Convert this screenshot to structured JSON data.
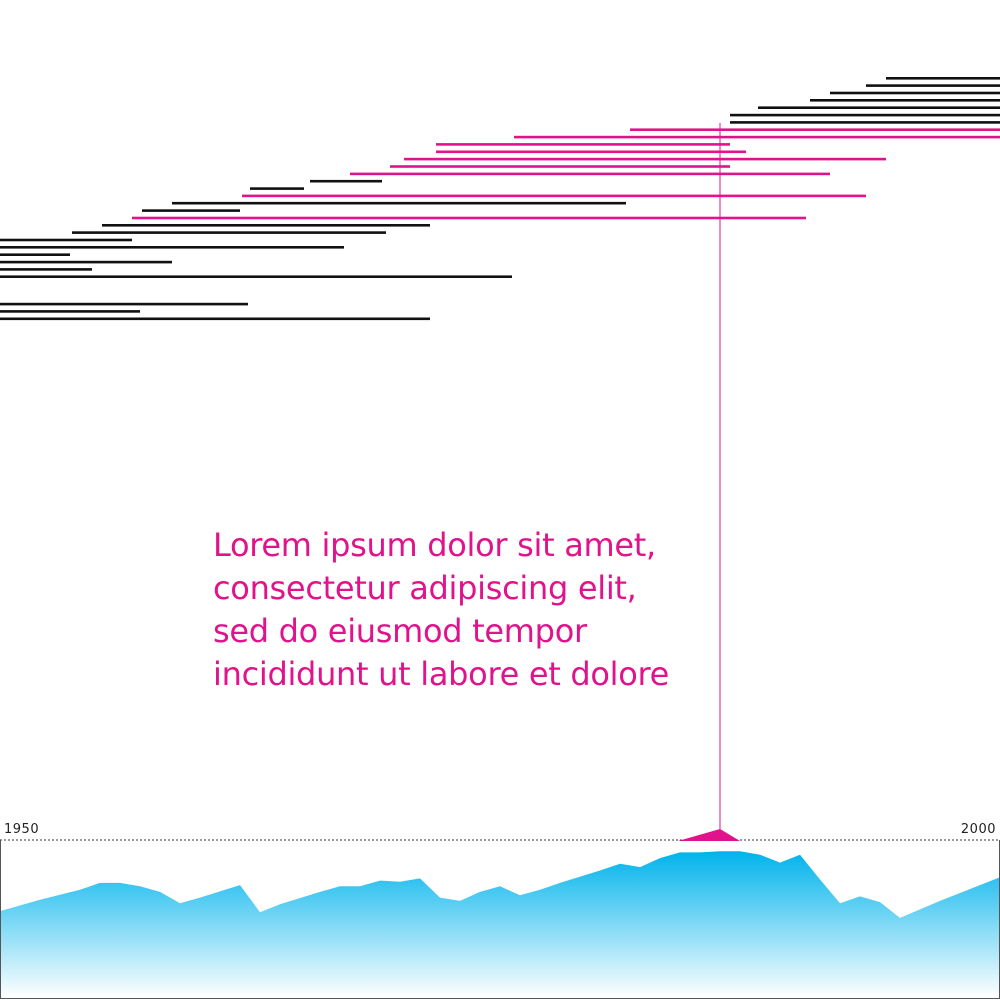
{
  "caption": {
    "lines": [
      "Lorem ipsum dolor sit amet,",
      "consectetur adipiscing elit,",
      "sed do eiusmod tempor",
      "incididunt ut labore et dolore"
    ]
  },
  "colors": {
    "highlight": "#e0138c",
    "default_bar": "#111111",
    "area_top": "#00b3ec",
    "area_bottom": "#ffffff"
  },
  "chart_data": {
    "type": "area",
    "x_start_label": "1950",
    "x_end_label": "2000",
    "x_range": [
      1950,
      2000
    ],
    "selected_year": 1986,
    "area": {
      "x": [
        1950,
        1952,
        1954,
        1955,
        1956,
        1957,
        1958,
        1959,
        1960,
        1962,
        1963,
        1964,
        1966,
        1967,
        1968,
        1969,
        1970,
        1971,
        1972,
        1973,
        1974,
        1975,
        1976,
        1977,
        1978,
        1980,
        1981,
        1982,
        1983,
        1984,
        1985,
        1986,
        1987,
        1988,
        1989,
        1990,
        1991,
        1992,
        1993,
        1994,
        1995,
        1997,
        1998,
        2000
      ],
      "y": [
        7.7,
        8.7,
        9.6,
        10.2,
        10.2,
        9.9,
        9.4,
        8.4,
        8.9,
        10.0,
        7.6,
        8.3,
        9.4,
        9.9,
        9.9,
        10.4,
        10.3,
        10.6,
        8.9,
        8.6,
        9.4,
        9.9,
        9.1,
        9.6,
        10.2,
        11.3,
        11.9,
        11.6,
        12.4,
        12.9,
        12.9,
        13.0,
        13.0,
        12.7,
        12.0,
        12.7,
        10.5,
        8.4,
        9.0,
        8.5,
        7.1,
        8.6,
        9.3,
        10.7
      ],
      "y_max": 14.0
    },
    "bars": {
      "rows": [
        {
          "start": 1994.3,
          "end": 2000,
          "highlight": false
        },
        {
          "start": 1993.3,
          "end": 2000,
          "highlight": false
        },
        {
          "start": 1991.5,
          "end": 2000,
          "highlight": false
        },
        {
          "start": 1990.5,
          "end": 2000,
          "highlight": false
        },
        {
          "start": 1987.9,
          "end": 2000,
          "highlight": false
        },
        {
          "start": 1986.5,
          "end": 2000,
          "highlight": false
        },
        {
          "start": 1986.5,
          "end": 2000,
          "highlight": false
        },
        {
          "start": 1981.5,
          "end": 2000,
          "highlight": true
        },
        {
          "start": 1975.7,
          "end": 2000,
          "highlight": true
        },
        {
          "start": 1971.8,
          "end": 1986.5,
          "highlight": true
        },
        {
          "start": 1971.8,
          "end": 1987.3,
          "highlight": true
        },
        {
          "start": 1970.2,
          "end": 1994.3,
          "highlight": true
        },
        {
          "start": 1969.5,
          "end": 1986.5,
          "highlight": true
        },
        {
          "start": 1967.5,
          "end": 1991.5,
          "highlight": true
        },
        {
          "start": 1965.5,
          "end": 1969.1,
          "highlight": false
        },
        {
          "start": 1962.5,
          "end": 1965.2,
          "highlight": false
        },
        {
          "start": 1962.1,
          "end": 1993.3,
          "highlight": true
        },
        {
          "start": 1958.6,
          "end": 1981.3,
          "highlight": false
        },
        {
          "start": 1957.1,
          "end": 1962.0,
          "highlight": false
        },
        {
          "start": 1956.6,
          "end": 1990.3,
          "highlight": true
        },
        {
          "start": 1955.1,
          "end": 1971.5,
          "highlight": false
        },
        {
          "start": 1953.6,
          "end": 1969.3,
          "highlight": false
        },
        {
          "start": 1950,
          "end": 1956.6,
          "highlight": false
        },
        {
          "start": 1950,
          "end": 1967.2,
          "highlight": false
        },
        {
          "start": 1950,
          "end": 1953.5,
          "highlight": false
        },
        {
          "start": 1950,
          "end": 1958.6,
          "highlight": false
        },
        {
          "start": 1950,
          "end": 1954.6,
          "highlight": false
        },
        {
          "start": 1950,
          "end": 1975.6,
          "highlight": false
        },
        {
          "start": 1950,
          "end": 1962.4,
          "highlight": false
        },
        {
          "start": 1950,
          "end": 1957.0,
          "highlight": false
        },
        {
          "start": 1950,
          "end": 1971.5,
          "highlight": false
        }
      ]
    }
  }
}
